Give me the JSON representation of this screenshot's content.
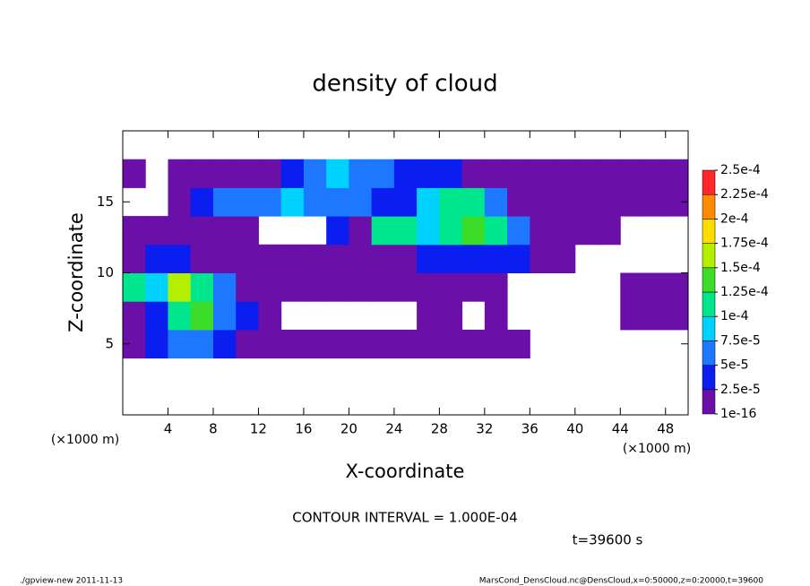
{
  "chart_data": {
    "type": "heatmap",
    "title": "density of cloud",
    "x_label": "X-coordinate",
    "y_label": "Z-coordinate",
    "x_unit_label": "(×1000 m)",
    "annotation": "CONTOUR INTERVAL = 1.000E-04",
    "time_label": "t=39600 s",
    "footer_left": "./gpview-new   2011-11-13",
    "footer_right": "MarsCond_DensCloud.nc@DensCloud,x=0:50000,z=0:20000,t=39600",
    "xlim": [
      0,
      50
    ],
    "ylim": [
      0,
      20
    ],
    "xticks": [
      4,
      8,
      12,
      16,
      20,
      24,
      28,
      32,
      36,
      40,
      44,
      48
    ],
    "yticks": [
      5,
      10,
      15
    ],
    "x": [
      1,
      3,
      5,
      7,
      9,
      11,
      13,
      15,
      17,
      19,
      21,
      23,
      25,
      27,
      29,
      31,
      33,
      35,
      37,
      39,
      41,
      43,
      45,
      47,
      49
    ],
    "y": [
      1,
      3,
      5,
      7,
      9,
      11,
      13,
      15,
      17,
      19
    ],
    "values": [
      [
        null,
        null,
        null,
        null,
        null,
        null,
        null,
        null,
        null,
        null,
        null,
        null,
        null,
        null,
        null,
        null,
        null,
        null,
        null,
        null,
        null,
        null,
        null,
        null,
        null
      ],
      [
        null,
        null,
        null,
        null,
        null,
        null,
        null,
        null,
        null,
        null,
        null,
        null,
        null,
        null,
        null,
        null,
        null,
        null,
        null,
        null,
        null,
        null,
        null,
        null,
        null
      ],
      [
        1e-05,
        4e-05,
        6e-05,
        6e-05,
        4e-05,
        1e-05,
        1e-05,
        1e-05,
        1e-05,
        1e-05,
        1e-05,
        1e-05,
        1e-05,
        1e-05,
        1e-05,
        1e-05,
        1e-05,
        1e-05,
        null,
        null,
        null,
        null,
        null,
        null,
        null
      ],
      [
        1e-05,
        4e-05,
        0.00011,
        0.00014,
        6e-05,
        4e-05,
        1e-05,
        null,
        null,
        null,
        null,
        null,
        null,
        1e-05,
        1e-05,
        null,
        1e-05,
        null,
        null,
        null,
        null,
        null,
        1e-05,
        1e-05,
        1e-05
      ],
      [
        0.00011,
        8.5e-05,
        0.00016,
        0.00011,
        6e-05,
        1e-05,
        1e-05,
        1e-05,
        1e-05,
        1e-05,
        1e-05,
        1e-05,
        1e-05,
        1e-05,
        1e-05,
        1e-05,
        1e-05,
        null,
        null,
        null,
        null,
        null,
        1e-05,
        1e-05,
        1e-05
      ],
      [
        1e-05,
        4e-05,
        4e-05,
        1e-05,
        1e-05,
        1e-05,
        1e-05,
        1e-05,
        1e-05,
        1e-05,
        1e-05,
        1e-05,
        1e-05,
        4e-05,
        4e-05,
        4e-05,
        4e-05,
        4e-05,
        1e-05,
        1e-05,
        null,
        null,
        null,
        null,
        null
      ],
      [
        1e-05,
        1e-05,
        1e-05,
        1e-05,
        1e-05,
        1e-05,
        null,
        null,
        null,
        4e-05,
        1e-05,
        0.00011,
        0.00011,
        8.5e-05,
        0.00011,
        0.00014,
        0.00011,
        6e-05,
        1e-05,
        1e-05,
        1e-05,
        1e-05,
        null,
        null,
        null
      ],
      [
        null,
        null,
        1e-05,
        4e-05,
        6e-05,
        6e-05,
        6e-05,
        8.5e-05,
        6e-05,
        6e-05,
        6e-05,
        4e-05,
        4e-05,
        8.5e-05,
        0.00011,
        0.00011,
        6e-05,
        1e-05,
        1e-05,
        1e-05,
        1e-05,
        1e-05,
        1e-05,
        1e-05,
        1e-05
      ],
      [
        1e-05,
        null,
        1e-05,
        1e-05,
        1e-05,
        1e-05,
        1e-05,
        4e-05,
        6e-05,
        8.5e-05,
        6e-05,
        6e-05,
        4e-05,
        4e-05,
        4e-05,
        1e-05,
        1e-05,
        1e-05,
        1e-05,
        1e-05,
        1e-05,
        1e-05,
        1e-05,
        1e-05,
        1e-05
      ],
      [
        null,
        null,
        null,
        null,
        null,
        null,
        null,
        null,
        null,
        null,
        null,
        null,
        null,
        null,
        null,
        null,
        null,
        null,
        null,
        null,
        null,
        null,
        null,
        null,
        null
      ]
    ],
    "colorbar": {
      "ticks": [
        {
          "value": 1e-16,
          "label": "1e-16"
        },
        {
          "value": 2.5e-05,
          "label": "2.5e-5"
        },
        {
          "value": 5e-05,
          "label": "5e-5"
        },
        {
          "value": 7.5e-05,
          "label": "7.5e-5"
        },
        {
          "value": 0.0001,
          "label": "1e-4"
        },
        {
          "value": 0.000125,
          "label": "1.25e-4"
        },
        {
          "value": 0.00015,
          "label": "1.5e-4"
        },
        {
          "value": 0.000175,
          "label": "1.75e-4"
        },
        {
          "value": 0.0002,
          "label": "2e-4"
        },
        {
          "value": 0.000225,
          "label": "2.25e-4"
        },
        {
          "value": 0.00025,
          "label": "2.5e-4"
        }
      ],
      "colors": [
        "#6a0fa8",
        "#0a1ef0",
        "#1e78ff",
        "#00d2ff",
        "#00e68c",
        "#3cdc28",
        "#b4ee00",
        "#ffdc00",
        "#ff8c00",
        "#ff2828",
        "#ff8c8c"
      ]
    }
  }
}
